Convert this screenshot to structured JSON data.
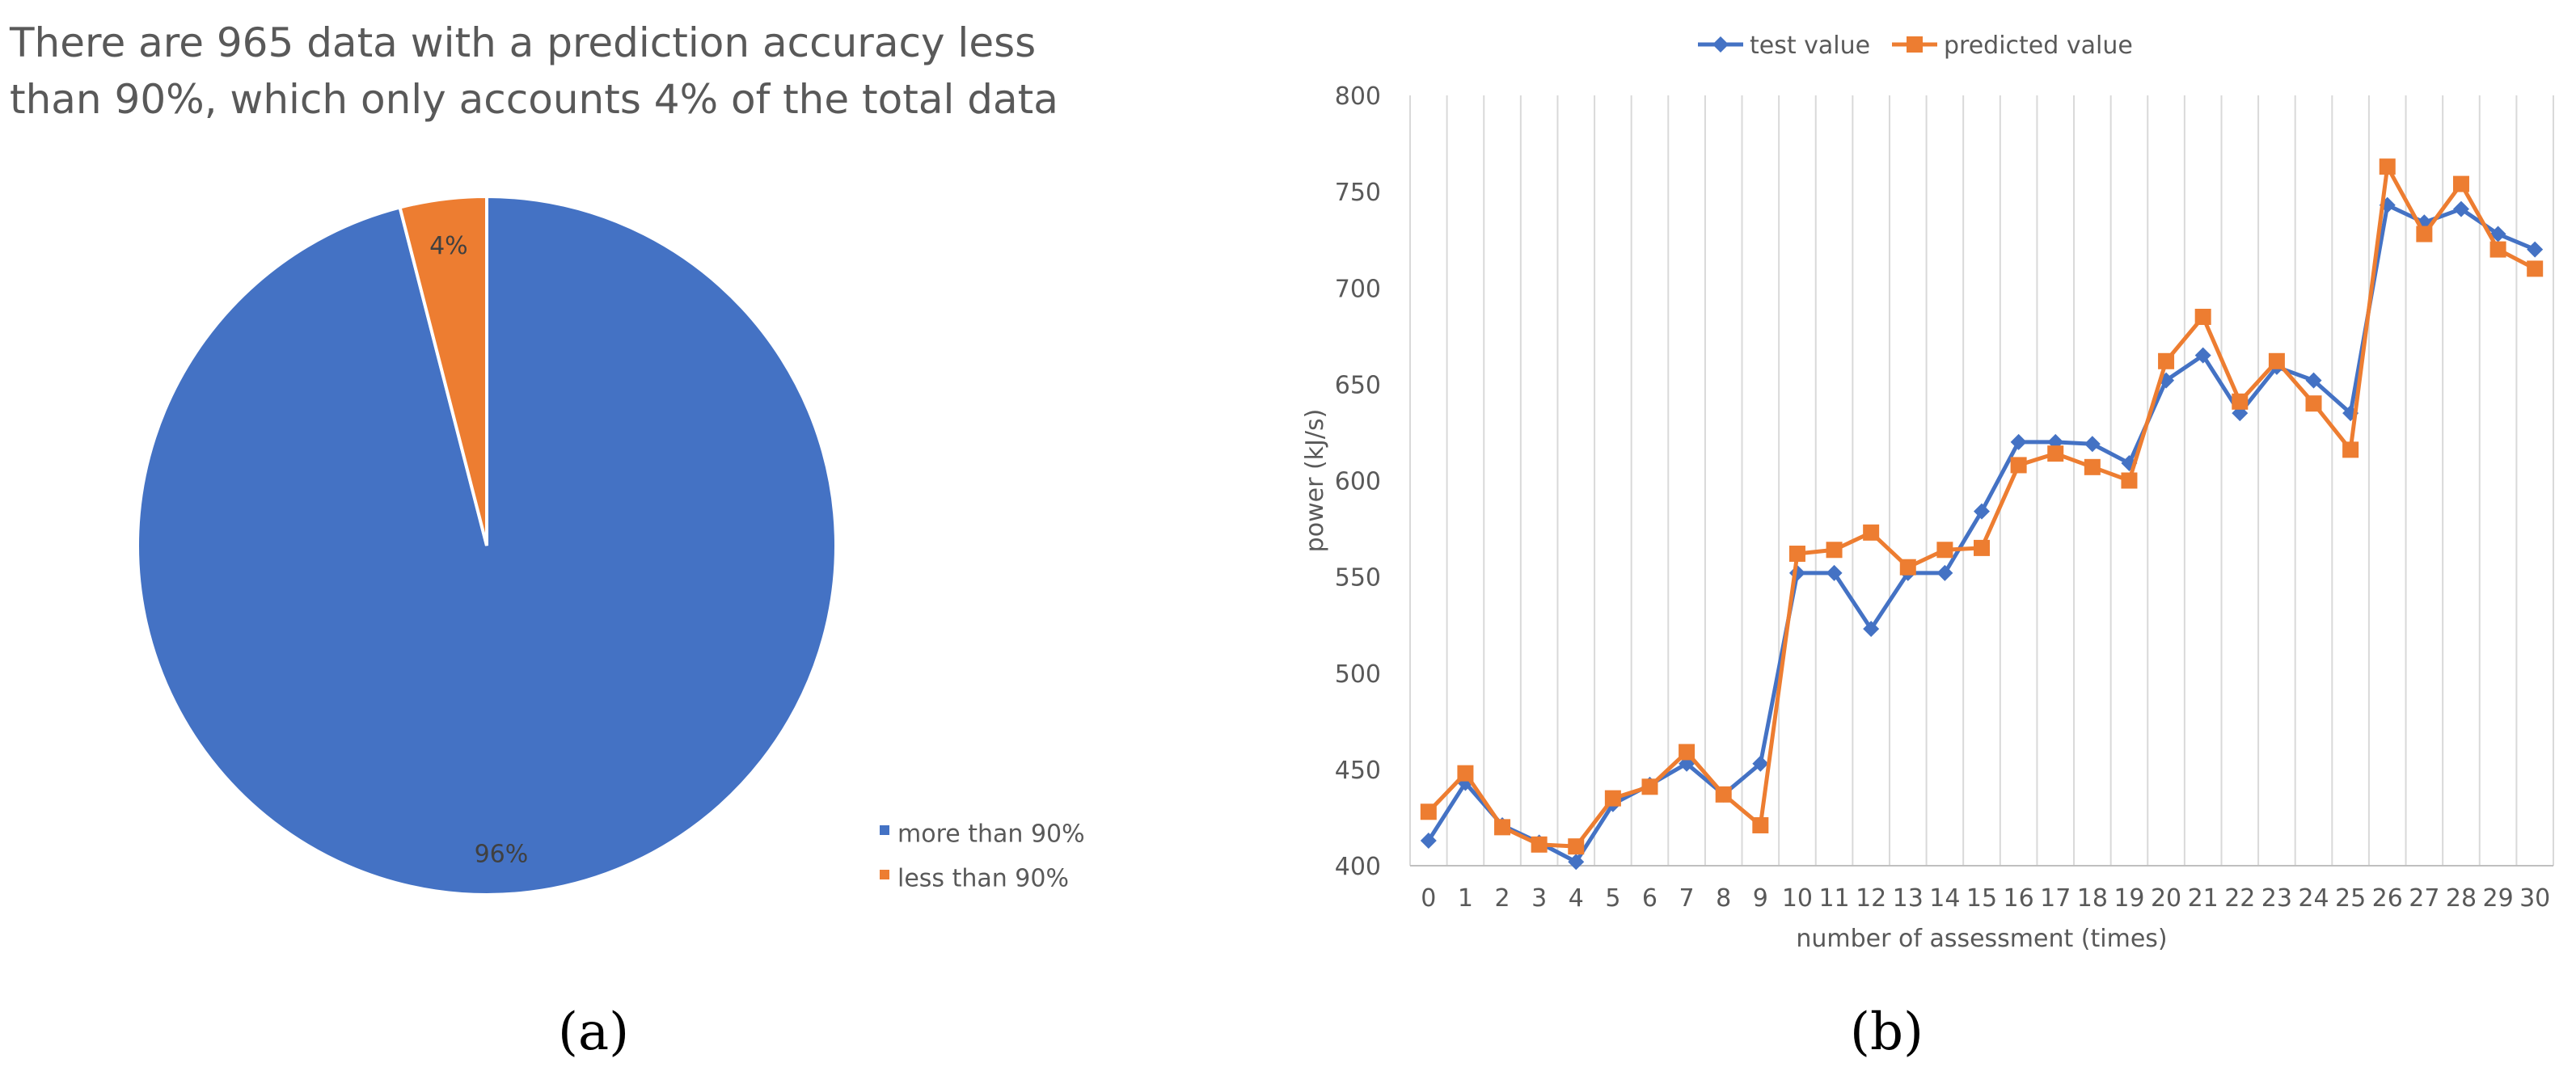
{
  "chart_data": [
    {
      "type": "pie",
      "title": "There are 965 data with a prediction accuracy less than 90%, which only accounts 4% of the total data",
      "slices": [
        {
          "name": "more than 90%",
          "value": 96,
          "label": "96%",
          "color": "#4472C4"
        },
        {
          "name": "less than 90%",
          "value": 4,
          "label": "4%",
          "color": "#ED7D31"
        }
      ],
      "legend_position": "bottom-right",
      "panel_label": "(a)"
    },
    {
      "type": "line",
      "xlabel": "number of assessment (times)",
      "ylabel": "power (kJ/s)",
      "x": [
        0,
        1,
        2,
        3,
        4,
        5,
        6,
        7,
        8,
        9,
        10,
        11,
        12,
        13,
        14,
        15,
        16,
        17,
        18,
        19,
        20,
        21,
        22,
        23,
        24,
        25,
        26,
        27,
        28,
        29,
        30
      ],
      "ylim": [
        400,
        800
      ],
      "yticks": [
        400,
        450,
        500,
        550,
        600,
        650,
        700,
        750,
        800
      ],
      "grid": "vertical",
      "legend_position": "top",
      "series": [
        {
          "name": "test value",
          "color": "#4472C4",
          "marker": "diamond",
          "values": [
            413,
            443,
            421,
            412,
            402,
            432,
            442,
            453,
            437,
            453,
            552,
            552,
            523,
            552,
            552,
            584,
            620,
            620,
            619,
            609,
            652,
            665,
            635,
            659,
            652,
            635,
            743,
            734,
            741,
            728,
            720
          ]
        },
        {
          "name": "predicted value",
          "color": "#ED7D31",
          "marker": "square",
          "values": [
            428,
            448,
            420,
            411,
            410,
            435,
            441,
            459,
            437,
            421,
            562,
            564,
            573,
            555,
            564,
            565,
            608,
            614,
            607,
            600,
            662,
            685,
            641,
            662,
            640,
            616,
            763,
            728,
            754,
            720,
            710
          ]
        }
      ],
      "panel_label": "(b)"
    }
  ]
}
